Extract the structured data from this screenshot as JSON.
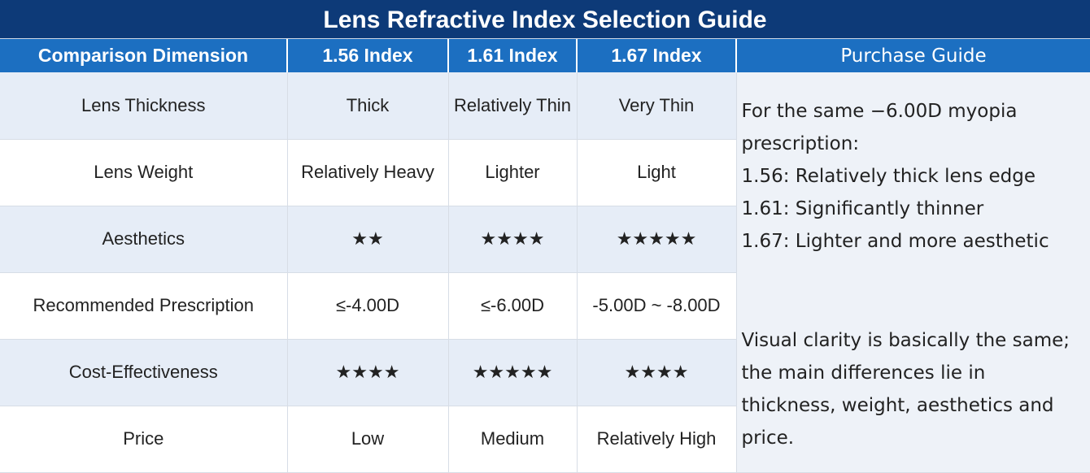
{
  "title": "Lens Refractive Index Selection Guide",
  "headers": [
    "Comparison Dimension",
    "1.56 Index",
    "1.61 Index",
    "1.67 Index",
    "Purchase Guide"
  ],
  "rows": [
    [
      "Lens Thickness",
      "Thick",
      "Relatively Thin",
      "Very Thin"
    ],
    [
      "Lens Weight",
      "Relatively Heavy",
      "Lighter",
      "Light"
    ],
    [
      "Aesthetics",
      "★★",
      "★★★★",
      "★★★★★"
    ],
    [
      "Recommended Prescription",
      "≤-4.00D",
      "≤-6.00D",
      "-5.00D ~ -8.00D"
    ],
    [
      "Cost-Effectiveness",
      "★★★★",
      "★★★★★",
      "★★★★"
    ],
    [
      "Price",
      "Low",
      "Medium",
      "Relatively High"
    ]
  ],
  "guide": {
    "lines": [
      "For the same −6.00D myopia prescription:",
      "1.56: Relatively thick lens edge",
      "1.61: Significantly thinner",
      "1.67: Lighter and more aesthetic"
    ],
    "note": "Visual clarity is basically the same; the main differences lie in thickness, weight, aesthetics and price."
  }
}
